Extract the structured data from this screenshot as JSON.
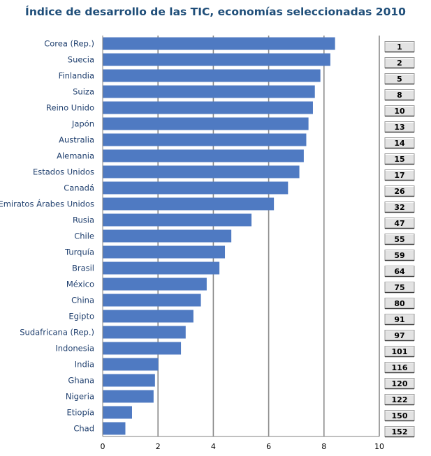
{
  "chart_data": {
    "type": "bar",
    "orientation": "horizontal",
    "title": "Índice de desarrollo de las TIC, economías seleccionadas 2010",
    "xlabel": "",
    "ylabel": "",
    "xlim": [
      0,
      10
    ],
    "xticks": [
      "0",
      "2",
      "4",
      "6",
      "8",
      "10"
    ],
    "grid": "vertical",
    "bar_color": "#4f7ac2",
    "grid_color": "#8a8a8a",
    "title_color": "#1f4e79",
    "label_color": "#1f3f6e",
    "categories": [
      "Corea (Rep.)",
      "Suecia",
      "Finlandia",
      "Suiza",
      "Reino Unido",
      "Japón",
      "Australia",
      "Alemania",
      "Estados Unidos",
      "Canadá",
      "Emiratos Árabes Unidos",
      "Rusia",
      "Chile",
      "Turquía",
      "Brasil",
      "México",
      "China",
      "Egipto",
      "Sudafricana (Rep.)",
      "Indonesia",
      "India",
      "Ghana",
      "Nigeria",
      "Etiopía",
      "Chad"
    ],
    "values": [
      8.4,
      8.23,
      7.87,
      7.67,
      7.6,
      7.44,
      7.36,
      7.27,
      7.11,
      6.7,
      6.19,
      5.38,
      4.65,
      4.42,
      4.22,
      3.76,
      3.55,
      3.28,
      3.0,
      2.83,
      2.01,
      1.89,
      1.84,
      1.06,
      0.82
    ],
    "ranks": [
      "1",
      "2",
      "5",
      "8",
      "10",
      "13",
      "14",
      "15",
      "17",
      "26",
      "32",
      "47",
      "55",
      "59",
      "64",
      "75",
      "80",
      "91",
      "97",
      "101",
      "116",
      "120",
      "122",
      "150",
      "152"
    ]
  }
}
